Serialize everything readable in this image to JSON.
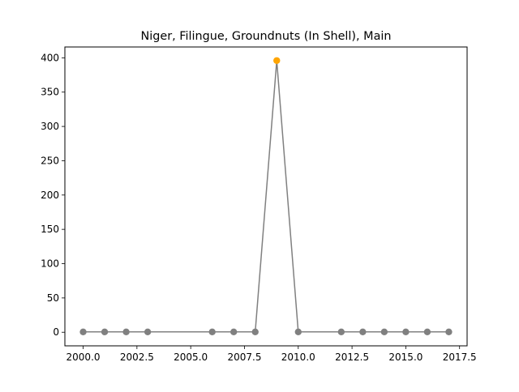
{
  "chart_data": {
    "type": "line",
    "title": "Niger, Filingue, Groundnuts (In Shell), Main",
    "xlabel": "",
    "ylabel": "",
    "xlim": [
      1999.15,
      2017.85
    ],
    "ylim": [
      -19.8,
      415.8
    ],
    "xticks": [
      2000.0,
      2002.5,
      2005.0,
      2007.5,
      2010.0,
      2012.5,
      2015.0,
      2017.5
    ],
    "xtick_labels": [
      "2000.0",
      "2002.5",
      "2005.0",
      "2007.5",
      "2010.0",
      "2012.5",
      "2015.0",
      "2017.5"
    ],
    "yticks": [
      0,
      50,
      100,
      150,
      200,
      250,
      300,
      350,
      400
    ],
    "ytick_labels": [
      "0",
      "50",
      "100",
      "150",
      "200",
      "250",
      "300",
      "350",
      "400"
    ],
    "grid": false,
    "legend": "none",
    "series": [
      {
        "color": "#808080",
        "x": [
          2000,
          2001,
          2002,
          2003,
          2006,
          2007,
          2008,
          2009,
          2010,
          2012,
          2013,
          2014,
          2015,
          2016,
          2017
        ],
        "y": [
          0.5,
          0.5,
          0.5,
          0.5,
          0.5,
          0.5,
          0.5,
          396,
          0.5,
          0.5,
          0.5,
          0.5,
          0.5,
          0.5,
          0.5
        ]
      }
    ],
    "highlight": {
      "x": 2009,
      "y": 396,
      "color": "#ffa500"
    }
  }
}
